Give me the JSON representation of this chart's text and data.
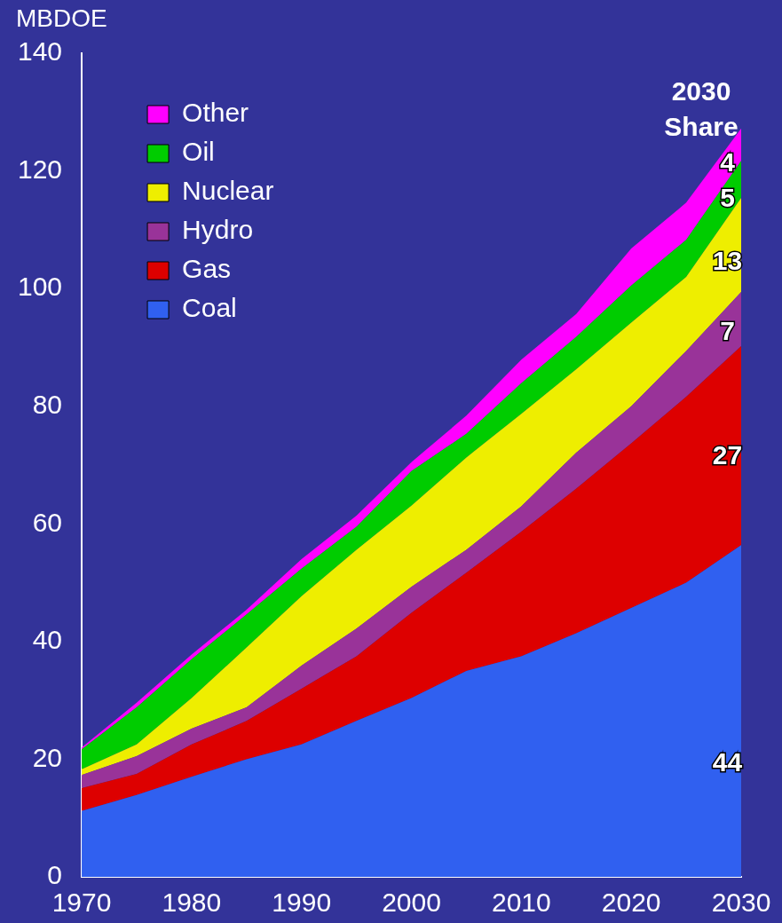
{
  "chart_data": {
    "type": "area",
    "stacked": true,
    "ylabel": "MBDOE",
    "x": [
      1970,
      1975,
      1980,
      1985,
      1990,
      1995,
      2000,
      2005,
      2010,
      2015,
      2020,
      2025,
      2030
    ],
    "series": [
      {
        "name": "Coal",
        "color": "#3060f0",
        "values": [
          11.2,
          13.9,
          17,
          20,
          22.5,
          26.5,
          30.4,
          35,
          37.5,
          41.4,
          45.7,
          50,
          56.4
        ]
      },
      {
        "name": "Gas",
        "color": "#dd0000",
        "values": [
          3.9,
          3.6,
          5.5,
          6.5,
          9.5,
          11,
          14.5,
          16.7,
          21.2,
          24.6,
          28,
          31.6,
          33.8
        ]
      },
      {
        "name": "Hydro",
        "color": "#993399",
        "values": [
          2.2,
          3,
          2.7,
          2.3,
          3.9,
          4.7,
          4.4,
          3.9,
          4.3,
          6.1,
          6.3,
          7.8,
          9.2
        ]
      },
      {
        "name": "Nuclear",
        "color": "#eeee00",
        "values": [
          1,
          2,
          5.2,
          10.2,
          11.8,
          13.4,
          13.8,
          15.7,
          15.7,
          14.2,
          14.2,
          12.6,
          16
        ]
      },
      {
        "name": "Oil",
        "color": "#00cc00",
        "values": [
          3.4,
          6.3,
          6.6,
          5.6,
          4.7,
          3.9,
          5.9,
          4,
          5.2,
          5.5,
          6.3,
          6.3,
          6.3
        ]
      },
      {
        "name": "Other",
        "color": "#ff00ff",
        "values": [
          0.3,
          0.8,
          0.8,
          0.8,
          1.6,
          1.9,
          1.5,
          3.1,
          4,
          3.9,
          6.3,
          6.3,
          5.5
        ]
      }
    ],
    "xlim": [
      1970,
      2030
    ],
    "xticks": [
      1970,
      1980,
      1990,
      2000,
      2010,
      2020,
      2030
    ],
    "ylim": [
      0,
      140
    ],
    "yticks": [
      0,
      20,
      40,
      60,
      80,
      100,
      120,
      140
    ],
    "grid": false,
    "legend": "top left",
    "annotations": [
      "2030\nShare",
      "44",
      "27",
      "7",
      "13",
      "5",
      "4"
    ]
  }
}
